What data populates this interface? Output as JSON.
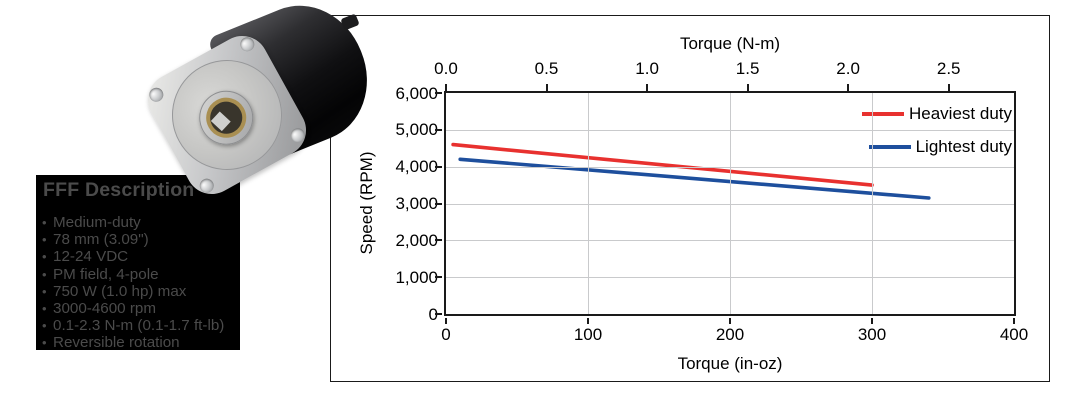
{
  "description_panel": {
    "title": "FFF Description",
    "bullet_char": "•",
    "bullets": [
      "Medium-duty",
      "78 mm (3.09\")",
      "12-24 VDC",
      "PM field, 4-pole",
      "750 W (1.0 hp) max",
      "3000-4600 rpm",
      "0.1-2.3 N-m (0.1-1.7 ft-lb)",
      "Reversible rotation"
    ],
    "bg_color": "#000000",
    "text_color": "#4b4b4b"
  },
  "motor_image": {
    "alt": "Black PM DC motor with silver mounting flange and keyed shaft"
  },
  "chart_data": {
    "type": "line",
    "top_axis": {
      "title": "Torque (N-m)",
      "ticks": [
        0,
        0.5,
        1.0,
        1.5,
        2.0,
        2.5
      ],
      "tick_labels": [
        "0.0",
        "0.5",
        "1.0",
        "1.5",
        "2.0",
        "2.5"
      ],
      "nm_to_inoz": 141.6
    },
    "bottom_axis": {
      "title": "Torque (in-oz)",
      "ticks": [
        0,
        100,
        200,
        300,
        400
      ],
      "tick_labels": [
        "0",
        "100",
        "200",
        "300",
        "400"
      ],
      "range": [
        0,
        400
      ]
    },
    "y_axis": {
      "title": "Speed (RPM)",
      "ticks": [
        0,
        1000,
        2000,
        3000,
        4000,
        5000,
        6000
      ],
      "tick_labels": [
        "0",
        "1,000",
        "2,000",
        "3,000",
        "4,000",
        "5,000",
        "6,000"
      ],
      "range": [
        0,
        6000
      ]
    },
    "grid": true,
    "legend_position": "top-right-inside",
    "series": [
      {
        "name": "Heaviest duty",
        "color": "#e8312f",
        "x_unit": "in-oz",
        "y_unit": "RPM",
        "points": [
          [
            5,
            4600
          ],
          [
            300,
            3500
          ]
        ]
      },
      {
        "name": "Lightest duty",
        "color": "#1e4f9d",
        "x_unit": "in-oz",
        "y_unit": "RPM",
        "points": [
          [
            10,
            4200
          ],
          [
            340,
            3150
          ]
        ]
      }
    ]
  }
}
